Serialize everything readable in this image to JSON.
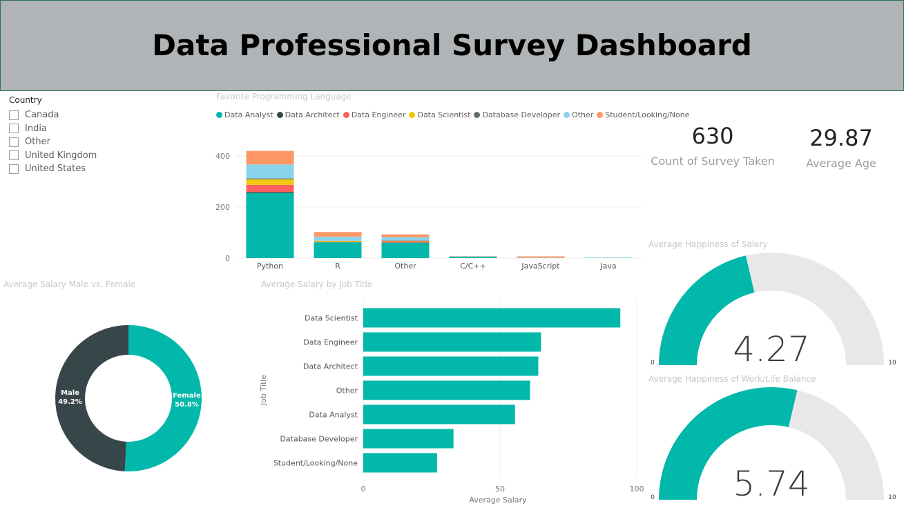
{
  "header": {
    "title": "Data Professional Survey Dashboard"
  },
  "slicer": {
    "title": "Country",
    "items": [
      "Canada",
      "India",
      "Other",
      "United Kingdom",
      "United States"
    ]
  },
  "kpis": {
    "count": {
      "value": "630",
      "label": "Count of Survey Taken"
    },
    "age": {
      "value": "29.87",
      "label": "Average Age"
    }
  },
  "colors": {
    "teal": "#01b8aa",
    "dark": "#374649",
    "red": "#fd625e",
    "yellow": "#f2c80f",
    "gray": "#5f6b6d",
    "lightblue": "#8ad4eb",
    "orange": "#fe9666",
    "gauge_bg": "#e8e8e8"
  },
  "chart_data": [
    {
      "type": "bar",
      "stacked": true,
      "title": "Favorite Programming Language",
      "categories": [
        "Python",
        "R",
        "Other",
        "C/C++",
        "JavaScript",
        "Java"
      ],
      "ylim": [
        0,
        400
      ],
      "yticks": [
        0,
        200,
        400
      ],
      "legend_position": "top",
      "series": [
        {
          "name": "Data Analyst",
          "color": "#01b8aa",
          "values": [
            255,
            62,
            60,
            5,
            0,
            1
          ]
        },
        {
          "name": "Data Architect",
          "color": "#374649",
          "values": [
            4,
            0,
            1,
            0,
            0,
            0
          ]
        },
        {
          "name": "Data Engineer",
          "color": "#fd625e",
          "values": [
            28,
            2,
            5,
            0,
            0,
            0
          ]
        },
        {
          "name": "Data Scientist",
          "color": "#f2c80f",
          "values": [
            22,
            4,
            2,
            0,
            0,
            0
          ]
        },
        {
          "name": "Database Developer",
          "color": "#5f6b6d",
          "values": [
            3,
            0,
            1,
            0,
            0,
            0
          ]
        },
        {
          "name": "Other",
          "color": "#8ad4eb",
          "values": [
            55,
            16,
            13,
            2,
            2,
            1
          ]
        },
        {
          "name": "Student/Looking/None",
          "color": "#fe9666",
          "values": [
            53,
            18,
            11,
            1,
            5,
            0
          ]
        }
      ]
    },
    {
      "type": "pie",
      "donut": true,
      "title": "Average Salary Male vs. Female",
      "slices": [
        {
          "label": "Female",
          "value": 50.8,
          "display": "50.8%",
          "color": "#01b8aa"
        },
        {
          "label": "Male",
          "value": 49.2,
          "display": "49.2%",
          "color": "#374649"
        }
      ]
    },
    {
      "type": "bar",
      "orientation": "horizontal",
      "title": "Average Salary by Job Title",
      "xlabel": "Average Salary",
      "ylabel": "Job Title",
      "xlim": [
        0,
        100
      ],
      "xticks": [
        0,
        50,
        100
      ],
      "categories": [
        "Data Scientist",
        "Data Engineer",
        "Data Architect",
        "Other",
        "Data Analyst",
        "Database Developer",
        "Student/Looking/None"
      ],
      "values": [
        94,
        65,
        64,
        61,
        55.5,
        33,
        27
      ],
      "color": "#01b8aa"
    },
    {
      "type": "gauge",
      "title": "Average Happiness of Salary",
      "value": 4.27,
      "display": "4.27",
      "min": 0,
      "max": 10,
      "min_label": "0",
      "max_label": "10"
    },
    {
      "type": "gauge",
      "title": "Average Happiness of Work/Life Balance",
      "value": 5.74,
      "display": "5.74",
      "min": 0,
      "max": 10,
      "min_label": "0",
      "max_label": "10"
    }
  ]
}
